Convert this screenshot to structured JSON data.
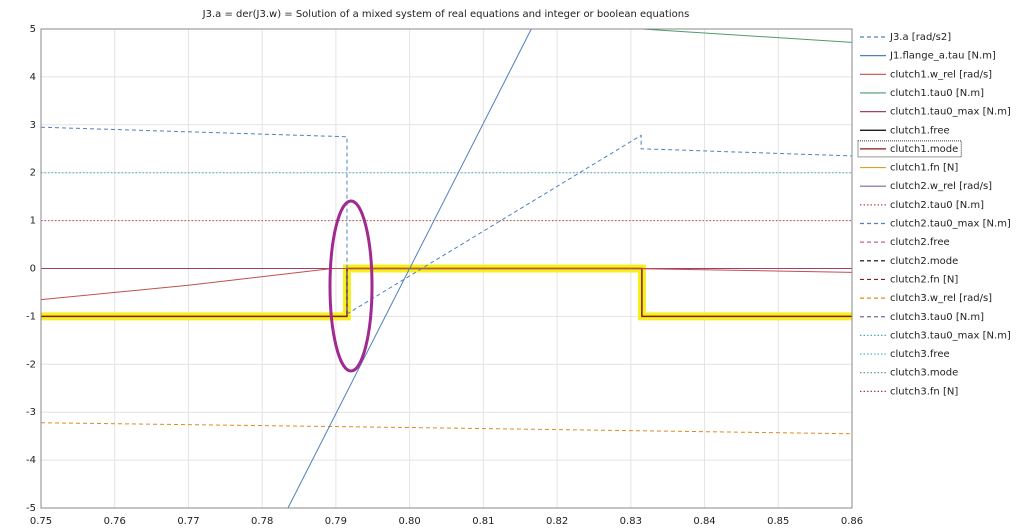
{
  "chart_data": {
    "type": "line",
    "title": "J3.a = der(J3.w) = Solution of a mixed system of real equations and integer or boolean equations",
    "xlim": [
      0.75,
      0.86
    ],
    "xticks": [
      0.75,
      0.76,
      0.77,
      0.78,
      0.79,
      {
        "value": 0.8,
        "label": "0.80"
      },
      0.81,
      0.82,
      0.83,
      0.84,
      0.85,
      0.86
    ],
    "ylim": [
      -5,
      5
    ],
    "yticks": [
      -5,
      -4,
      -3,
      -2,
      -1,
      0,
      1,
      2,
      3,
      4,
      5
    ],
    "grid": true,
    "legend": "right",
    "series": [
      {
        "name": "J3.a [rad/s2]",
        "color": "#4f81bd",
        "style": "dashed",
        "x": [
          0.75,
          0.7915,
          0.7915,
          0.8314,
          0.8314,
          0.86
        ],
        "values": [
          2.95,
          2.75,
          -0.95,
          2.78,
          2.5,
          2.35
        ]
      },
      {
        "name": "J1.flange_a.tau [N.m]",
        "color": "#4f81bd",
        "style": "solid",
        "x": [
          0.7835,
          0.8165
        ],
        "values": [
          -5,
          5
        ]
      },
      {
        "name": "clutch1.w_rel [rad/s]",
        "color": "#c0504d",
        "style": "solid",
        "x": [
          0.75,
          0.77,
          0.7895,
          0.83,
          0.86
        ],
        "values": [
          -0.65,
          -0.35,
          0,
          0,
          -0.08
        ]
      },
      {
        "name": "clutch1.tau0 [N.m]",
        "color": "#4e9a6e",
        "style": "solid",
        "x": [
          0.8315,
          0.86
        ],
        "values": [
          5,
          4.72
        ]
      },
      {
        "name": "clutch1.tau0_max [N.m]",
        "color": "#a0406a",
        "style": "solid",
        "x": [
          0.75,
          0.86
        ],
        "values": [
          0,
          0
        ]
      },
      {
        "name": "clutch1.free",
        "color": "#000000",
        "style": "solid",
        "x": [
          0.75,
          0.86
        ],
        "values": [
          0,
          0
        ]
      },
      {
        "name": "clutch1.mode",
        "color": "#8b1a1a",
        "style": "solid",
        "highlight": true,
        "x": [
          0.75,
          0.7915,
          0.7915,
          0.8315,
          0.8315,
          0.86
        ],
        "values": [
          -1,
          -1,
          0,
          0,
          -1,
          -1
        ]
      },
      {
        "name": "clutch1.fn [N]",
        "color": "#e0a020",
        "style": "solid",
        "x": [
          0.75,
          0.86
        ],
        "values": [
          0,
          0
        ]
      },
      {
        "name": "clutch2.w_rel [rad/s]",
        "color": "#8064a2",
        "style": "solid",
        "x": [
          0.75,
          0.86
        ],
        "values": [
          0,
          0
        ]
      },
      {
        "name": "clutch2.tau0 [N.m]",
        "color": "#c0504d",
        "style": "dotted",
        "x": [
          0.75,
          0.86
        ],
        "values": [
          1,
          1
        ]
      },
      {
        "name": "clutch2.tau0_max [N.m]",
        "color": "#4f81bd",
        "style": "dashed",
        "x": [
          0.75,
          0.86
        ],
        "values": [
          0,
          0
        ]
      },
      {
        "name": "clutch2.free",
        "color": "#c060a0",
        "style": "dashed",
        "x": [
          0.75,
          0.86
        ],
        "values": [
          0,
          0
        ]
      },
      {
        "name": "clutch2.mode",
        "color": "#000000",
        "style": "dashed",
        "x": [
          0.75,
          0.86
        ],
        "values": [
          0,
          0
        ]
      },
      {
        "name": "clutch2.fn [N]",
        "color": "#8b1a1a",
        "style": "dashed",
        "x": [
          0.75,
          0.86
        ],
        "values": [
          0,
          0
        ]
      },
      {
        "name": "clutch3.w_rel [rad/s]",
        "color": "#e08a20",
        "style": "dashed",
        "x": [
          0.75,
          0.8,
          0.86
        ],
        "values": [
          -3.22,
          -3.32,
          -3.45
        ]
      },
      {
        "name": "clutch3.tau0 [N.m]",
        "color": "#8064a2",
        "style": "dashed",
        "x": [
          0.75,
          0.86
        ],
        "values": [
          0,
          0
        ]
      },
      {
        "name": "clutch3.tau0_max [N.m]",
        "color": "#4bacc6",
        "style": "dotted",
        "x": [
          0.75,
          0.86
        ],
        "values": [
          2,
          2
        ]
      },
      {
        "name": "clutch3.free",
        "color": "#4bacc6",
        "style": "dotted",
        "x": [
          0.75,
          0.86
        ],
        "values": [
          0,
          0
        ]
      },
      {
        "name": "clutch3.mode",
        "color": "#4e9a6e",
        "style": "dotted",
        "x": [
          0.75,
          0.86
        ],
        "values": [
          0,
          0
        ]
      },
      {
        "name": "clutch3.fn [N]",
        "color": "#a0406a",
        "style": "dotted",
        "x": [
          0.75,
          0.86
        ],
        "values": [
          0,
          0
        ]
      }
    ]
  }
}
